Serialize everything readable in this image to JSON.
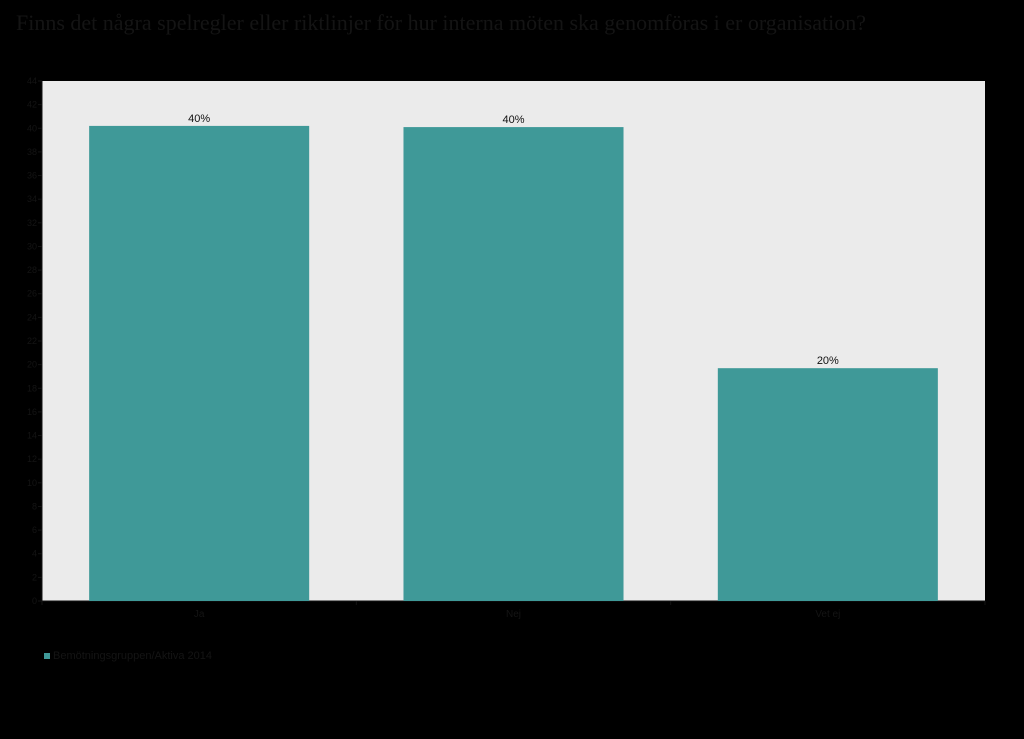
{
  "colors": {
    "background": "#000000",
    "plot_background": "#ebebeb",
    "bar": "#3f9998",
    "text_dark": "#141414",
    "data_label": "#111111"
  },
  "chart_data": {
    "type": "bar",
    "title": "Finns det några spelregler eller riktlinjer för hur interna möten ska genomföras i er organisation?",
    "categories": [
      "Ja",
      "Nej",
      "Vet ej"
    ],
    "series": [
      {
        "name": "Bemötningsgruppen/Aktiva 2014",
        "values": [
          40.2,
          40.1,
          19.7
        ],
        "labels": [
          "40%",
          "40%",
          "20%"
        ]
      }
    ],
    "xlabel": "",
    "ylabel": "",
    "ylim": [
      0,
      44
    ],
    "yticks": [
      0,
      2,
      4,
      6,
      8,
      10,
      12,
      14,
      16,
      18,
      20,
      22,
      24,
      26,
      28,
      30,
      32,
      34,
      36,
      38,
      40,
      42,
      44
    ],
    "grid": false,
    "legend_position": "bottom-left"
  }
}
